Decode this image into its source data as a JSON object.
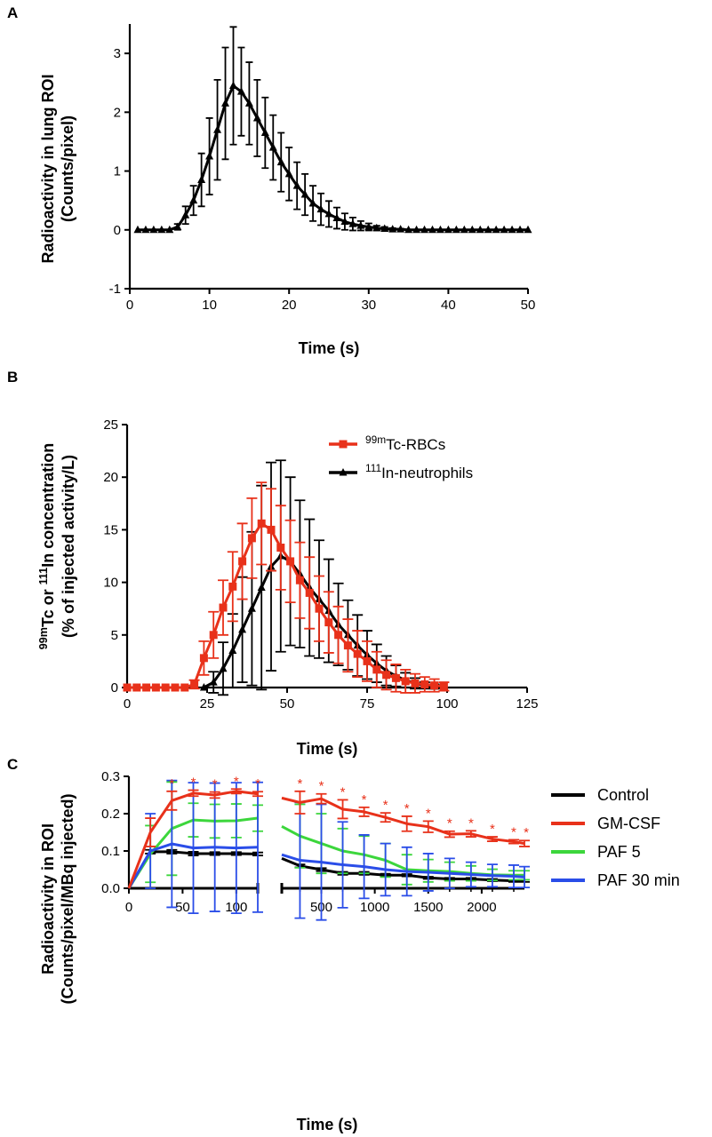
{
  "panels": {
    "A": {
      "label": "A"
    },
    "B": {
      "label": "B"
    },
    "C": {
      "label": "C"
    }
  },
  "chart_data": [
    {
      "panel": "A",
      "type": "line",
      "xlabel": "Time (s)",
      "ylabel_lines": [
        "Radioactivity in lung ROI",
        "(Counts/pixel)"
      ],
      "xlim": [
        0,
        50
      ],
      "ylim": [
        -1,
        3.5
      ],
      "xticks": [
        0,
        10,
        20,
        30,
        40,
        50
      ],
      "yticks": [
        -1,
        0,
        1,
        2,
        3
      ],
      "series": [
        {
          "color": "#000000",
          "marker": "triangle",
          "x": [
            1,
            2,
            3,
            4,
            5,
            6,
            7,
            8,
            9,
            10,
            11,
            12,
            13,
            14,
            15,
            16,
            17,
            18,
            19,
            20,
            21,
            22,
            23,
            24,
            25,
            26,
            27,
            28,
            29,
            30,
            31,
            32,
            33,
            34,
            35,
            36,
            37,
            38,
            39,
            40,
            41,
            42,
            43,
            44,
            45,
            46,
            47,
            48,
            49,
            50
          ],
          "y": [
            0,
            0,
            0,
            0,
            0,
            0.05,
            0.25,
            0.5,
            0.85,
            1.25,
            1.7,
            2.15,
            2.45,
            2.35,
            2.15,
            1.9,
            1.65,
            1.4,
            1.15,
            0.95,
            0.75,
            0.6,
            0.45,
            0.35,
            0.27,
            0.2,
            0.14,
            0.1,
            0.07,
            0.05,
            0.03,
            0.02,
            0.01,
            0.01,
            0,
            0,
            0,
            0,
            0,
            0,
            0,
            0,
            0,
            0,
            0,
            0,
            0,
            0,
            0,
            0
          ],
          "err": [
            0,
            0,
            0,
            0,
            0,
            0.05,
            0.15,
            0.25,
            0.45,
            0.65,
            0.85,
            0.95,
            1.0,
            0.75,
            0.7,
            0.65,
            0.6,
            0.55,
            0.5,
            0.45,
            0.4,
            0.35,
            0.3,
            0.27,
            0.22,
            0.18,
            0.14,
            0.11,
            0.08,
            0.06,
            0.04,
            0.03,
            0.02,
            0.01,
            0,
            0,
            0,
            0,
            0,
            0,
            0,
            0,
            0,
            0,
            0,
            0,
            0,
            0,
            0,
            0
          ]
        }
      ]
    },
    {
      "panel": "B",
      "type": "line",
      "xlabel": "Time (s)",
      "ylabel_lines": [
        {
          "parts": [
            [
              "sup",
              "99m"
            ],
            [
              "",
              "Tc or "
            ],
            [
              "sup",
              "111"
            ],
            [
              "",
              "In concentration"
            ]
          ]
        },
        {
          "parts": [
            [
              "",
              "(% of injected activity/L)"
            ]
          ]
        }
      ],
      "xlim": [
        0,
        125
      ],
      "ylim": [
        0,
        25
      ],
      "xticks": [
        0,
        25,
        50,
        75,
        100,
        125
      ],
      "yticks": [
        0,
        5,
        10,
        15,
        20,
        25
      ],
      "legend_position": "top-right",
      "series": [
        {
          "legend": [
            [
              "sup",
              "99m"
            ],
            [
              "",
              "Tc-RBCs"
            ]
          ],
          "color": "#e8311a",
          "marker": "square",
          "x": [
            0,
            3,
            6,
            9,
            12,
            15,
            18,
            21,
            24,
            27,
            30,
            33,
            36,
            39,
            42,
            45,
            48,
            51,
            54,
            57,
            60,
            63,
            66,
            69,
            72,
            75,
            78,
            81,
            84,
            87,
            90,
            93,
            96,
            99
          ],
          "y": [
            0,
            0,
            0,
            0,
            0,
            0,
            0,
            0.3,
            2.8,
            5,
            7.6,
            9.6,
            12,
            14.2,
            15.6,
            15,
            13.3,
            12,
            10.2,
            9,
            7.5,
            6.2,
            5,
            4,
            3.2,
            2.5,
            1.7,
            1.2,
            0.9,
            0.6,
            0.4,
            0.3,
            0.2,
            0.1
          ],
          "err": [
            0,
            0,
            0,
            0,
            0,
            0,
            0,
            0.4,
            1.6,
            2.2,
            2.6,
            3.3,
            3.6,
            3.8,
            3.9,
            3.9,
            4,
            3.9,
            3.6,
            3.4,
            3.1,
            2.9,
            2.7,
            2.5,
            2.2,
            1.9,
            1.7,
            1.4,
            1.3,
            1.1,
            0.9,
            0.7,
            0.6,
            0.4
          ]
        },
        {
          "legend": [
            [
              "sup",
              "111"
            ],
            [
              "",
              "In-neutrophils"
            ]
          ],
          "color": "#000000",
          "marker": "triangle",
          "x": [
            24,
            27,
            30,
            33,
            36,
            39,
            42,
            45,
            48,
            51,
            54,
            57,
            60,
            63,
            66,
            69,
            72,
            75,
            78,
            81,
            84,
            87,
            90,
            93,
            96,
            99
          ],
          "y": [
            0,
            0.5,
            1.8,
            3.5,
            5.5,
            7.5,
            9.5,
            11.5,
            12.5,
            12,
            10.8,
            9.5,
            8.4,
            7.3,
            6,
            5,
            4,
            3.1,
            2.3,
            1.6,
            1.1,
            0.7,
            0.4,
            0.2,
            0.1,
            0
          ],
          "err": [
            0,
            1,
            2.5,
            3.5,
            5,
            7.3,
            9.7,
            9.9,
            9.1,
            8,
            7,
            6.5,
            5.6,
            4.9,
            3.9,
            3.3,
            2.9,
            2.3,
            1.8,
            1.4,
            1,
            0.7,
            0.5,
            0.3,
            0.2,
            0
          ]
        }
      ]
    },
    {
      "panel": "C",
      "type": "line",
      "xlabel": "Time (s)",
      "ylabel_lines": [
        "Radioactivity in ROI",
        "(Counts/pixel/MBq injected)"
      ],
      "ylim": [
        0,
        0.3
      ],
      "yticks": [
        "0.0",
        "0.1",
        "0.2",
        "0.3"
      ],
      "x_segments": [
        {
          "xlim": [
            0,
            120
          ],
          "xticks": [
            0,
            50,
            100
          ]
        },
        {
          "xlim": [
            130,
            2400
          ],
          "xticks": [
            500,
            1000,
            1500,
            2000
          ]
        }
      ],
      "legend_position": "right",
      "significance_marker": "*",
      "series": [
        {
          "name": "Control",
          "color": "#000000",
          "seg1": {
            "x": [
              0,
              20,
              40,
              60,
              80,
              100,
              120
            ],
            "y": [
              0,
              0.098,
              0.098,
              0.093,
              0.093,
              0.093,
              0.092
            ],
            "err": [
              0,
              0.005,
              0.005,
              0.005,
              0.004,
              0.004,
              0.004
            ]
          },
          "seg2": {
            "x": [
              130,
              300,
              500,
              700,
              900,
              1100,
              1300,
              1500,
              1700,
              1900,
              2100,
              2300,
              2400
            ],
            "y": [
              0.08,
              0.06,
              0.05,
              0.04,
              0.04,
              0.035,
              0.035,
              0.028,
              0.025,
              0.025,
              0.022,
              0.02,
              0.02
            ],
            "err": [
              0,
              0.004,
              0.004,
              0.004,
              0.004,
              0.004,
              0.003,
              0.003,
              0.003,
              0.003,
              0.003,
              0.003,
              0.003
            ]
          }
        },
        {
          "name": "GM-CSF",
          "color": "#e8311a",
          "stars": [
            40,
            60,
            80,
            100,
            120,
            300,
            500,
            700,
            900,
            1100,
            1300,
            1500,
            1700,
            1900,
            2100,
            2300,
            2400
          ],
          "seg1": {
            "x": [
              0,
              20,
              40,
              60,
              80,
              100,
              120
            ],
            "y": [
              0,
              0.15,
              0.235,
              0.255,
              0.25,
              0.26,
              0.253
            ],
            "err": [
              0,
              0.038,
              0.025,
              0.008,
              0.008,
              0.006,
              0.006
            ]
          },
          "seg2": {
            "x": [
              130,
              300,
              500,
              700,
              900,
              1100,
              1300,
              1500,
              1700,
              1900,
              2100,
              2300,
              2400
            ],
            "y": [
              0.242,
              0.23,
              0.24,
              0.212,
              0.205,
              0.19,
              0.173,
              0.165,
              0.145,
              0.146,
              0.132,
              0.125,
              0.12
            ],
            "err": [
              0,
              0.03,
              0.013,
              0.025,
              0.012,
              0.012,
              0.02,
              0.015,
              0.008,
              0.008,
              0.006,
              0.005,
              0.008
            ]
          }
        },
        {
          "name": "PAF 5",
          "color": "#3cd63c",
          "seg1": {
            "x": [
              0,
              20,
              40,
              60,
              80,
              100,
              120
            ],
            "y": [
              0,
              0.092,
              0.16,
              0.183,
              0.18,
              0.181,
              0.188
            ],
            "err": [
              0,
              0.076,
              0.125,
              0.045,
              0.045,
              0.045,
              0.035
            ]
          },
          "seg2": {
            "x": [
              130,
              300,
              500,
              700,
              900,
              1100,
              1300,
              1500,
              1700,
              1900,
              2100,
              2300,
              2400
            ],
            "y": [
              0.166,
              0.14,
              0.12,
              0.1,
              0.09,
              0.075,
              0.05,
              0.047,
              0.045,
              0.04,
              0.036,
              0.035,
              0.035
            ],
            "err": [
              0,
              0.085,
              0.08,
              0.06,
              0.05,
              0.045,
              0.04,
              0.03,
              0.025,
              0.02,
              0.015,
              0.012,
              0.012
            ]
          }
        },
        {
          "name": "PAF 30 min",
          "color": "#2a4de8",
          "seg1": {
            "x": [
              0,
              20,
              40,
              60,
              80,
              100,
              120
            ],
            "y": [
              0,
              0.1,
              0.119,
              0.108,
              0.11,
              0.108,
              0.11
            ],
            "err": [
              0,
              0.1,
              0.17,
              0.175,
              0.172,
              0.175,
              0.174
            ]
          },
          "seg2": {
            "x": [
              130,
              300,
              500,
              700,
              900,
              1100,
              1300,
              1500,
              1700,
              1900,
              2100,
              2300,
              2400
            ],
            "y": [
              0.09,
              0.075,
              0.07,
              0.063,
              0.058,
              0.05,
              0.045,
              0.043,
              0.04,
              0.037,
              0.034,
              0.032,
              0.03
            ],
            "err": [
              0,
              0.155,
              0.155,
              0.115,
              0.085,
              0.07,
              0.065,
              0.05,
              0.04,
              0.033,
              0.03,
              0.03,
              0.028
            ]
          }
        }
      ]
    }
  ]
}
